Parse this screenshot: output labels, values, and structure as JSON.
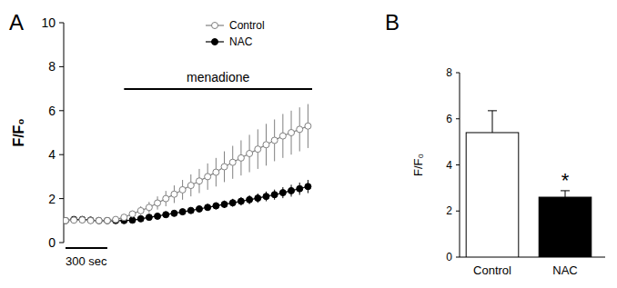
{
  "chart_data": [
    {
      "type": "line",
      "panel_label": "A",
      "y_label": "F/F₀",
      "x": [
        0,
        60,
        120,
        180,
        240,
        300,
        360,
        420,
        480,
        540,
        600,
        660,
        720,
        780,
        840,
        900,
        960,
        1020,
        1080,
        1140,
        1200,
        1260,
        1320,
        1380,
        1440,
        1500,
        1560,
        1620,
        1680,
        1740
      ],
      "series": [
        {
          "name": "Control",
          "color": "#808080",
          "marker": "open-circle",
          "values": [
            1.0,
            1.02,
            1.03,
            1.0,
            1.0,
            1.0,
            1.05,
            1.15,
            1.3,
            1.45,
            1.6,
            1.8,
            2.0,
            2.2,
            2.4,
            2.6,
            2.8,
            3.0,
            3.2,
            3.45,
            3.65,
            3.85,
            4.05,
            4.25,
            4.45,
            4.65,
            4.85,
            5.0,
            5.15,
            5.3
          ],
          "errors": [
            0.1,
            0.1,
            0.1,
            0.1,
            0.1,
            0.1,
            0.1,
            0.12,
            0.15,
            0.2,
            0.25,
            0.3,
            0.35,
            0.4,
            0.45,
            0.5,
            0.55,
            0.6,
            0.65,
            0.7,
            0.75,
            0.8,
            0.85,
            0.9,
            0.95,
            0.95,
            1.0,
            1.0,
            1.0,
            1.0
          ]
        },
        {
          "name": "NAC",
          "color": "#000000",
          "marker": "filled-circle",
          "values": [
            1.0,
            1.05,
            1.05,
            1.02,
            1.0,
            1.0,
            1.0,
            1.0,
            1.02,
            1.08,
            1.15,
            1.2,
            1.27,
            1.33,
            1.4,
            1.46,
            1.53,
            1.6,
            1.67,
            1.74,
            1.81,
            1.88,
            1.95,
            2.02,
            2.1,
            2.18,
            2.27,
            2.36,
            2.45,
            2.55
          ],
          "errors": [
            0.05,
            0.05,
            0.05,
            0.05,
            0.05,
            0.05,
            0.05,
            0.05,
            0.06,
            0.07,
            0.08,
            0.09,
            0.1,
            0.11,
            0.12,
            0.13,
            0.14,
            0.15,
            0.16,
            0.17,
            0.18,
            0.19,
            0.2,
            0.21,
            0.22,
            0.23,
            0.25,
            0.27,
            0.28,
            0.3
          ]
        }
      ],
      "xlim": [
        0,
        1770
      ],
      "ylim": [
        0,
        10
      ],
      "yticks": [
        0,
        2,
        4,
        6,
        8,
        10
      ],
      "tick_labels": "y",
      "legend": "top-right",
      "annotations": [
        {
          "text": "menadione",
          "x": [
            420,
            1770
          ]
        },
        {
          "text": "300 sec",
          "x": [
            0,
            300
          ]
        }
      ]
    },
    {
      "type": "bar",
      "panel_label": "B",
      "y_label": "F/F₀",
      "categories": [
        "Control",
        "NAC"
      ],
      "values": [
        5.4,
        2.6
      ],
      "errors": [
        0.95,
        0.28
      ],
      "colors": [
        "#ffffff",
        "#000000"
      ],
      "ylim": [
        0,
        8
      ],
      "yticks": [
        0,
        2,
        4,
        6,
        8
      ],
      "annotations": [
        {
          "text": "*",
          "category": 1
        }
      ]
    }
  ]
}
